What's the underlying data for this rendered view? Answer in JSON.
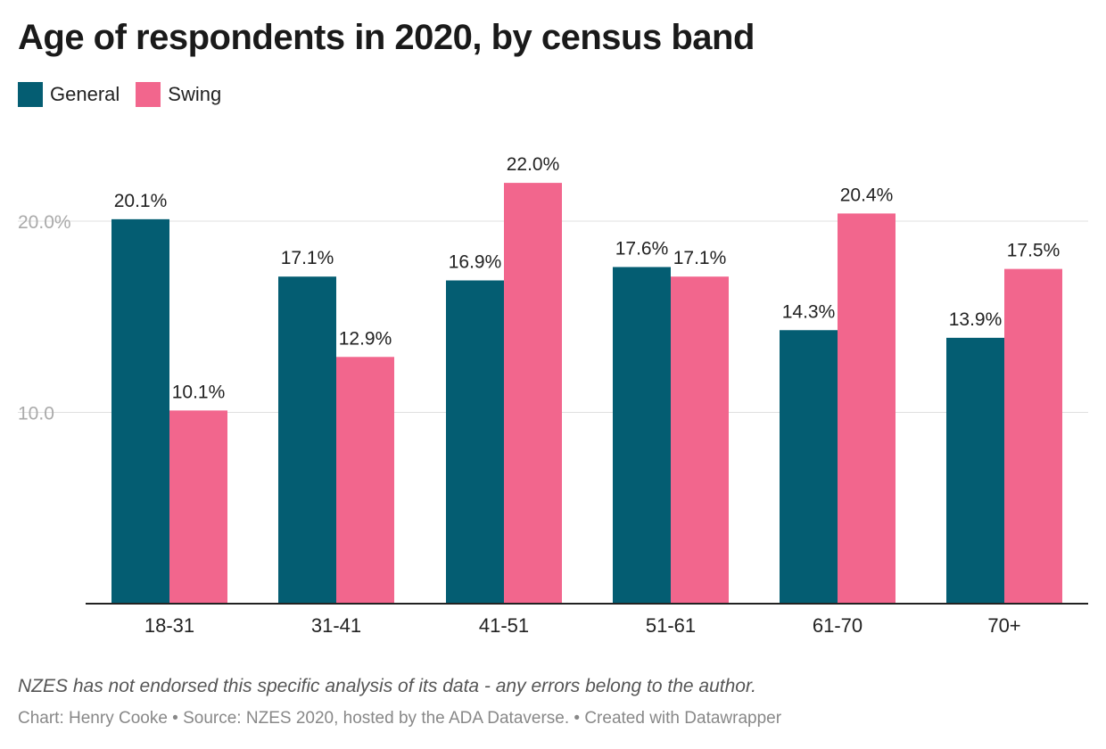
{
  "chart_data": {
    "type": "bar",
    "title": "Age of respondents in 2020, by census band",
    "categories": [
      "18-31",
      "31-41",
      "41-51",
      "51-61",
      "61-70",
      "70+"
    ],
    "series": [
      {
        "name": "General",
        "color": "#045d72",
        "values": [
          20.1,
          17.1,
          16.9,
          17.6,
          14.3,
          13.9
        ]
      },
      {
        "name": "Swing",
        "color": "#f2668d",
        "values": [
          10.1,
          12.9,
          22.0,
          17.1,
          20.4,
          17.5
        ]
      }
    ],
    "value_labels": [
      [
        "20.1%",
        "17.1%",
        "16.9%",
        "17.6%",
        "14.3%",
        "13.9%"
      ],
      [
        "10.1%",
        "12.9%",
        "22.0%",
        "17.1%",
        "20.4%",
        "17.5%"
      ]
    ],
    "yticks": [
      10,
      20
    ],
    "ytick_labels": [
      "10.0",
      "20.0%"
    ],
    "ylim": [
      0,
      23
    ],
    "grid": true,
    "legend_position": "top-left",
    "xlabel": "",
    "ylabel": ""
  },
  "note": "NZES has not endorsed this specific analysis of its data - any errors belong to the author.",
  "footer": "Chart: Henry Cooke • Source: NZES 2020, hosted by the ADA Dataverse. • Created with Datawrapper"
}
